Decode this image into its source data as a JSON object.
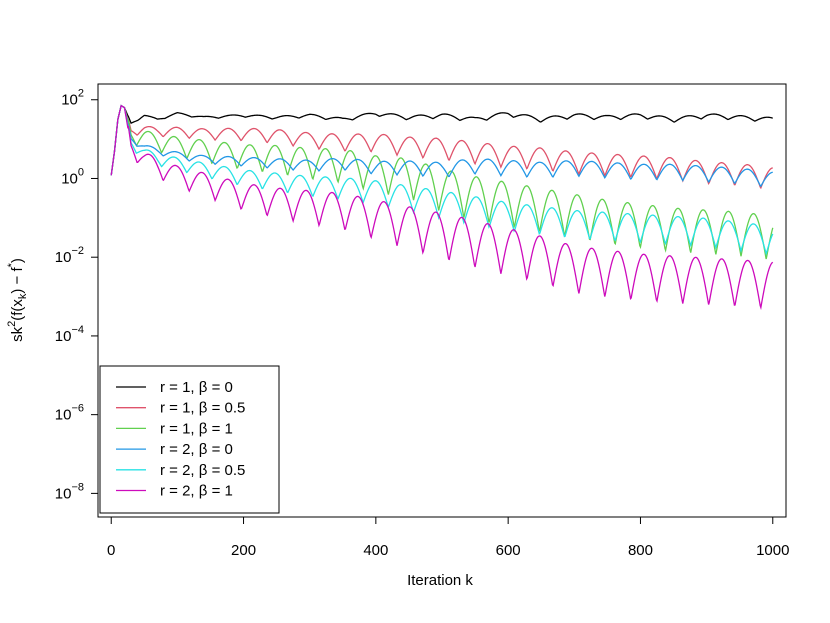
{
  "chart_data": {
    "type": "line",
    "xlabel": "Iteration  k",
    "ylabel": {
      "base": "sk",
      "sup1": "2",
      "mid": "(f(x",
      "sub": "k",
      "mid2": ") − f",
      "sup2": "*",
      "end": ")"
    },
    "x_ticks": [
      "0",
      "200",
      "400",
      "600",
      "800",
      "1000"
    ],
    "x_tick_values": [
      0,
      200,
      400,
      600,
      800,
      1000
    ],
    "y_ticks": [
      {
        "base": "10",
        "exp": "2",
        "value": 2
      },
      {
        "base": "10",
        "exp": "0",
        "value": 0
      },
      {
        "base": "10",
        "exp": "−2",
        "value": -2
      },
      {
        "base": "10",
        "exp": "−4",
        "value": -4
      },
      {
        "base": "10",
        "exp": "−6",
        "value": -6
      },
      {
        "base": "10",
        "exp": "−8",
        "value": -8
      }
    ],
    "y_scale": "log10",
    "xlim": [
      -20,
      1020
    ],
    "ylim_log10": [
      -8.6,
      2.4
    ],
    "grid": false,
    "legend_position": "bottom-left",
    "series": [
      {
        "name": "r = 1, β = 0",
        "color": "#000000",
        "x": [
          0,
          5,
          10,
          15,
          20,
          30,
          50,
          70,
          100,
          140,
          200,
          250,
          300,
          350,
          400,
          450,
          500,
          550,
          600,
          650,
          700,
          750,
          800,
          850,
          900,
          950,
          1000
        ],
        "y": [
          0.08,
          0.7,
          1.5,
          1.85,
          1.8,
          1.4,
          1.6,
          1.5,
          1.65,
          1.55,
          1.6,
          1.55,
          1.6,
          1.5,
          1.65,
          1.55,
          1.6,
          1.5,
          1.65,
          1.5,
          1.6,
          1.55,
          1.6,
          1.5,
          1.6,
          1.55,
          1.5
        ]
      },
      {
        "name": "r = 1, β = 0.5",
        "color": "#DF536B",
        "x": [
          0,
          5,
          10,
          15,
          20,
          30,
          50,
          70,
          100,
          140,
          200,
          250,
          300,
          350,
          400,
          450,
          500,
          550,
          600,
          650,
          700,
          750,
          800,
          850,
          900,
          950,
          1000
        ],
        "y": [
          0.08,
          0.7,
          1.5,
          1.85,
          1.8,
          1.2,
          1.25,
          1.2,
          1.2,
          1.15,
          1.15,
          1.1,
          1.0,
          0.95,
          0.95,
          0.85,
          0.8,
          0.7,
          0.6,
          0.55,
          0.45,
          0.4,
          0.35,
          0.3,
          0.2,
          0.15,
          0.05
        ]
      },
      {
        "name": "r = 1, β = 1",
        "color": "#61D04F",
        "x": [
          0,
          5,
          10,
          15,
          20,
          30,
          50,
          70,
          100,
          140,
          200,
          250,
          300,
          350,
          400,
          450,
          500,
          550,
          600,
          650,
          700,
          750,
          800,
          850,
          900,
          950,
          1000
        ],
        "y": [
          0.08,
          0.7,
          1.5,
          1.85,
          1.8,
          1.1,
          1.05,
          0.95,
          0.85,
          0.75,
          0.6,
          0.55,
          0.45,
          0.4,
          0.2,
          0.1,
          -0.2,
          -0.4,
          -0.55,
          -0.7,
          -0.85,
          -1.0,
          -1.1,
          -1.2,
          -1.25,
          -1.3,
          -1.4
        ]
      },
      {
        "name": "r = 2, β = 0",
        "color": "#2297E6",
        "x": [
          0,
          5,
          10,
          15,
          20,
          30,
          50,
          70,
          100,
          140,
          200,
          250,
          300,
          350,
          400,
          450,
          500,
          550,
          600,
          650,
          700,
          750,
          800,
          850,
          900,
          950,
          1000
        ],
        "y": [
          0.08,
          0.7,
          1.5,
          1.85,
          1.8,
          1.0,
          0.8,
          0.7,
          0.6,
          0.5,
          0.45,
          0.4,
          0.35,
          0.4,
          0.3,
          0.3,
          0.25,
          0.35,
          0.3,
          0.25,
          0.3,
          0.25,
          0.2,
          0.2,
          0.15,
          0.1,
          0.0
        ]
      },
      {
        "name": "r = 2, β = 0.5",
        "color": "#28E2E5",
        "x": [
          0,
          5,
          10,
          15,
          20,
          30,
          50,
          70,
          100,
          140,
          200,
          250,
          300,
          350,
          400,
          450,
          500,
          550,
          600,
          650,
          700,
          750,
          800,
          850,
          900,
          950,
          1000
        ],
        "y": [
          0.08,
          0.7,
          1.5,
          1.85,
          1.8,
          0.9,
          0.65,
          0.5,
          0.4,
          0.25,
          0.05,
          -0.05,
          -0.15,
          -0.2,
          -0.3,
          -0.45,
          -0.6,
          -0.75,
          -0.9,
          -1.0,
          -1.1,
          -1.15,
          -1.2,
          -1.25,
          -1.3,
          -1.4,
          -1.5
        ]
      },
      {
        "name": "r = 2, β = 1",
        "color": "#CD0BBC",
        "x": [
          0,
          5,
          10,
          15,
          20,
          30,
          50,
          70,
          100,
          140,
          200,
          250,
          300,
          350,
          400,
          450,
          500,
          550,
          600,
          650,
          700,
          750,
          800,
          850,
          900,
          950,
          1000
        ],
        "y": [
          0.08,
          0.7,
          1.5,
          1.85,
          1.8,
          0.8,
          0.5,
          0.3,
          0.1,
          -0.1,
          -0.4,
          -0.55,
          -0.65,
          -0.75,
          -0.95,
          -1.15,
          -1.35,
          -1.55,
          -1.75,
          -1.95,
          -2.2,
          -2.3,
          -2.4,
          -2.45,
          -2.5,
          -2.55,
          -2.6
        ]
      }
    ]
  }
}
